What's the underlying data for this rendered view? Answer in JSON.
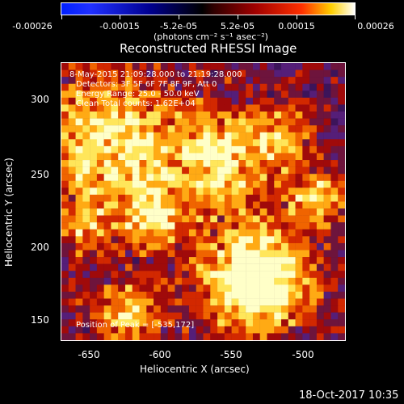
{
  "colorbar": {
    "ticks": [
      "-0.00026",
      "-0.00015",
      "-5.2e-05",
      "5.2e-05",
      "0.00015",
      "0.00026"
    ],
    "units": "(photons cm⁻² s⁻¹ asec⁻²)"
  },
  "title": "Reconstructed RHESSI Image",
  "overlay": {
    "line1": "8-May-2015 21:09:28.000 to 21:19:28.000",
    "line2": "Detectors: 3F 5F 6F 7F 8F 9F, Att 0",
    "line3": "Energy Range: 25.0 - 50.0 keV",
    "line4": "Clean     Total counts: 1.62E+04",
    "peak": "Position of Peak = [-535,172]"
  },
  "axes": {
    "xlabel": "Heliocentric X (arcsec)",
    "ylabel": "Heliocentric Y (arcsec)",
    "xticks": [
      "-650",
      "-600",
      "-550",
      "-500"
    ],
    "yticks": [
      "300",
      "250",
      "200",
      "150"
    ]
  },
  "footer_date": "18-Oct-2017 10:35",
  "colors": {
    "hot_peak": "#ffffc0",
    "background": "#000000",
    "low": "#3a1550"
  }
}
